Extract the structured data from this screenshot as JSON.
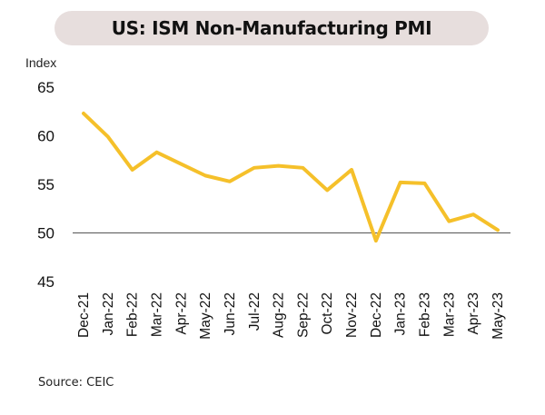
{
  "chart_data": {
    "type": "line",
    "title": "US: ISM Non-Manufacturing PMI",
    "ylabel": "Index",
    "xlabel": "",
    "ylim": [
      45,
      65
    ],
    "yticks": [
      45,
      50,
      55,
      60,
      65
    ],
    "reference_line": 50,
    "grid": false,
    "categories": [
      "Dec-21",
      "Jan-22",
      "Feb-22",
      "Mar-22",
      "Apr-22",
      "May-22",
      "Jun-22",
      "Jul-22",
      "Aug-22",
      "Sep-22",
      "Oct-22",
      "Nov-22",
      "Dec-22",
      "Jan-23",
      "Feb-23",
      "Mar-23",
      "Apr-23",
      "May-23"
    ],
    "series": [
      {
        "values": [
          62.3,
          59.9,
          56.5,
          58.3,
          57.1,
          55.9,
          55.3,
          56.7,
          56.9,
          56.7,
          54.4,
          56.5,
          49.2,
          55.2,
          55.1,
          51.2,
          51.9,
          50.3
        ],
        "color": "#f5c02a"
      }
    ]
  },
  "source": "Source: CEIC"
}
